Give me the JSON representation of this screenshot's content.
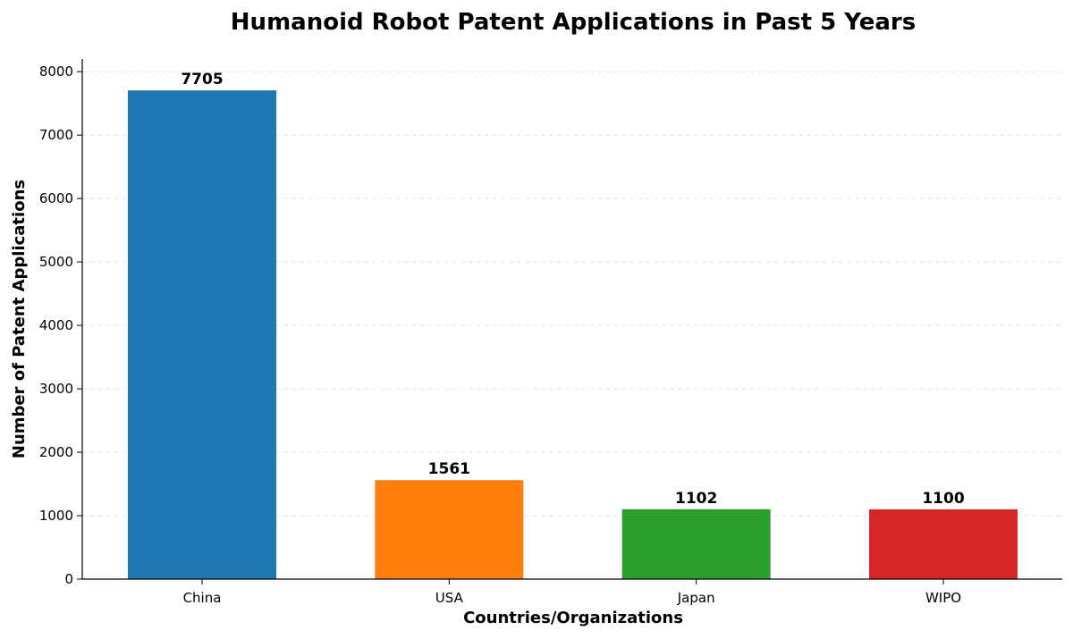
{
  "chart_data": {
    "type": "bar",
    "title": "Humanoid Robot Patent Applications in Past 5 Years",
    "xlabel": "Countries/Organizations",
    "ylabel": "Number of Patent Applications",
    "categories": [
      "China",
      "USA",
      "Japan",
      "WIPO"
    ],
    "values": [
      7705,
      1561,
      1102,
      1100
    ],
    "data_labels": [
      "7705",
      "1561",
      "1102",
      "1100"
    ],
    "colors": [
      "#1f77b4",
      "#ff7f0e",
      "#2ca02c",
      "#d62728"
    ],
    "ylim": [
      0,
      8200
    ],
    "yticks": [
      0,
      1000,
      2000,
      3000,
      4000,
      5000,
      6000,
      7000,
      8000
    ],
    "ytick_labels": [
      "0",
      "1000",
      "2000",
      "3000",
      "4000",
      "5000",
      "6000",
      "7000",
      "8000"
    ],
    "grid": "y-dashed",
    "legend": "none"
  }
}
